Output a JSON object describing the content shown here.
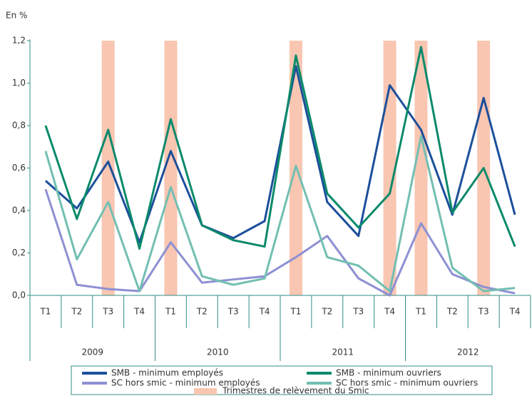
{
  "chart_data": {
    "type": "line",
    "y_label": "En %",
    "categories": [
      "T1",
      "T2",
      "T3",
      "T4",
      "T1",
      "T2",
      "T3",
      "T4",
      "T1",
      "T2",
      "T3",
      "T4",
      "T1",
      "T2",
      "T3",
      "T4"
    ],
    "years": [
      "2009",
      "2010",
      "2011",
      "2012"
    ],
    "ylim": [
      0,
      1.2
    ],
    "yticks": [
      {
        "value": 0,
        "label": "0,0"
      },
      {
        "value": 0.2,
        "label": "0,2"
      },
      {
        "value": 0.4,
        "label": "0,4"
      },
      {
        "value": 0.6,
        "label": "0,6"
      },
      {
        "value": 0.8,
        "label": "0,8"
      },
      {
        "value": 1.0,
        "label": "1,0"
      },
      {
        "value": 1.2,
        "label": "1,2"
      }
    ],
    "grid": false,
    "bars": {
      "name": "Trimestres de relèvement du Smic",
      "color": "#f9c6b2",
      "values": [
        null,
        null,
        1.2,
        null,
        1.2,
        null,
        null,
        null,
        1.2,
        null,
        null,
        1.2,
        1.2,
        null,
        1.2,
        null
      ]
    },
    "series": [
      {
        "name": "SMB - minimum employés",
        "color": "#1c4f9b",
        "values": [
          0.54,
          0.41,
          0.63,
          0.25,
          0.68,
          0.33,
          0.27,
          0.35,
          1.08,
          0.44,
          0.28,
          0.99,
          0.78,
          0.38,
          0.93,
          0.38
        ]
      },
      {
        "name": "SMB - minimum ouvriers",
        "color": "#0b8a6b",
        "values": [
          0.8,
          0.36,
          0.78,
          0.22,
          0.83,
          0.33,
          0.26,
          0.23,
          1.13,
          0.48,
          0.32,
          0.48,
          1.17,
          0.39,
          0.6,
          0.23
        ]
      },
      {
        "name": "SC hors smic - minimum employés",
        "color": "#8e90d2",
        "values": [
          0.5,
          0.05,
          0.03,
          0.02,
          0.25,
          0.06,
          0.075,
          0.09,
          0.18,
          0.28,
          0.08,
          0.0,
          0.34,
          0.1,
          0.04,
          0.01
        ]
      },
      {
        "name": "SC hors smic - minimum ouvriers",
        "color": "#72bfb2",
        "values": [
          0.68,
          0.17,
          0.44,
          0.02,
          0.51,
          0.09,
          0.05,
          0.08,
          0.61,
          0.18,
          0.14,
          0.02,
          0.75,
          0.13,
          0.02,
          0.035
        ]
      }
    ]
  }
}
